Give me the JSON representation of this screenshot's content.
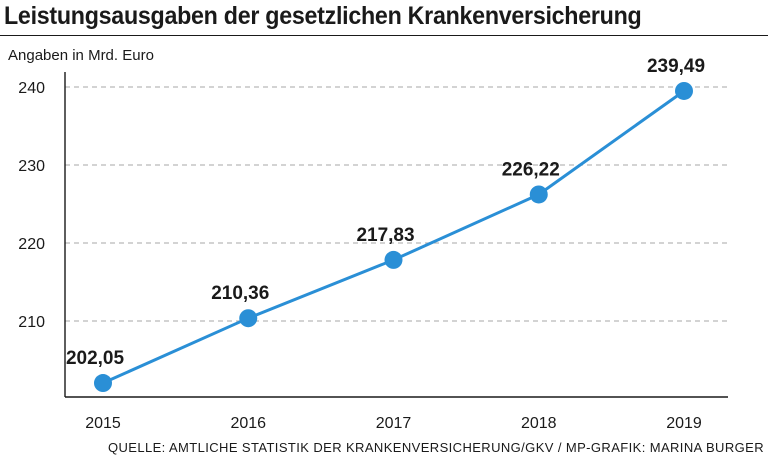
{
  "chart_data": {
    "type": "line",
    "title": "Leistungsausgaben der gesetzlichen Krankenversicherung",
    "ylabel": "Angaben in Mrd. Euro",
    "xlabel": "",
    "x": [
      "2015",
      "2016",
      "2017",
      "2018",
      "2019"
    ],
    "values": [
      202.05,
      210.36,
      217.83,
      226.22,
      239.49
    ],
    "value_labels": [
      "202,05",
      "210,36",
      "217,83",
      "226,22",
      "239,49"
    ],
    "yticks": [
      210,
      220,
      230,
      240
    ],
    "ylim": [
      200,
      240
    ],
    "grid": "horizontal dashed",
    "source": "QUELLE: AMTLICHE STATISTIK DER KRANKENVERSICHERUNG/GKV / MP-GRAFIK: MARINA BURGER",
    "line_color": "#2a8fd6"
  }
}
